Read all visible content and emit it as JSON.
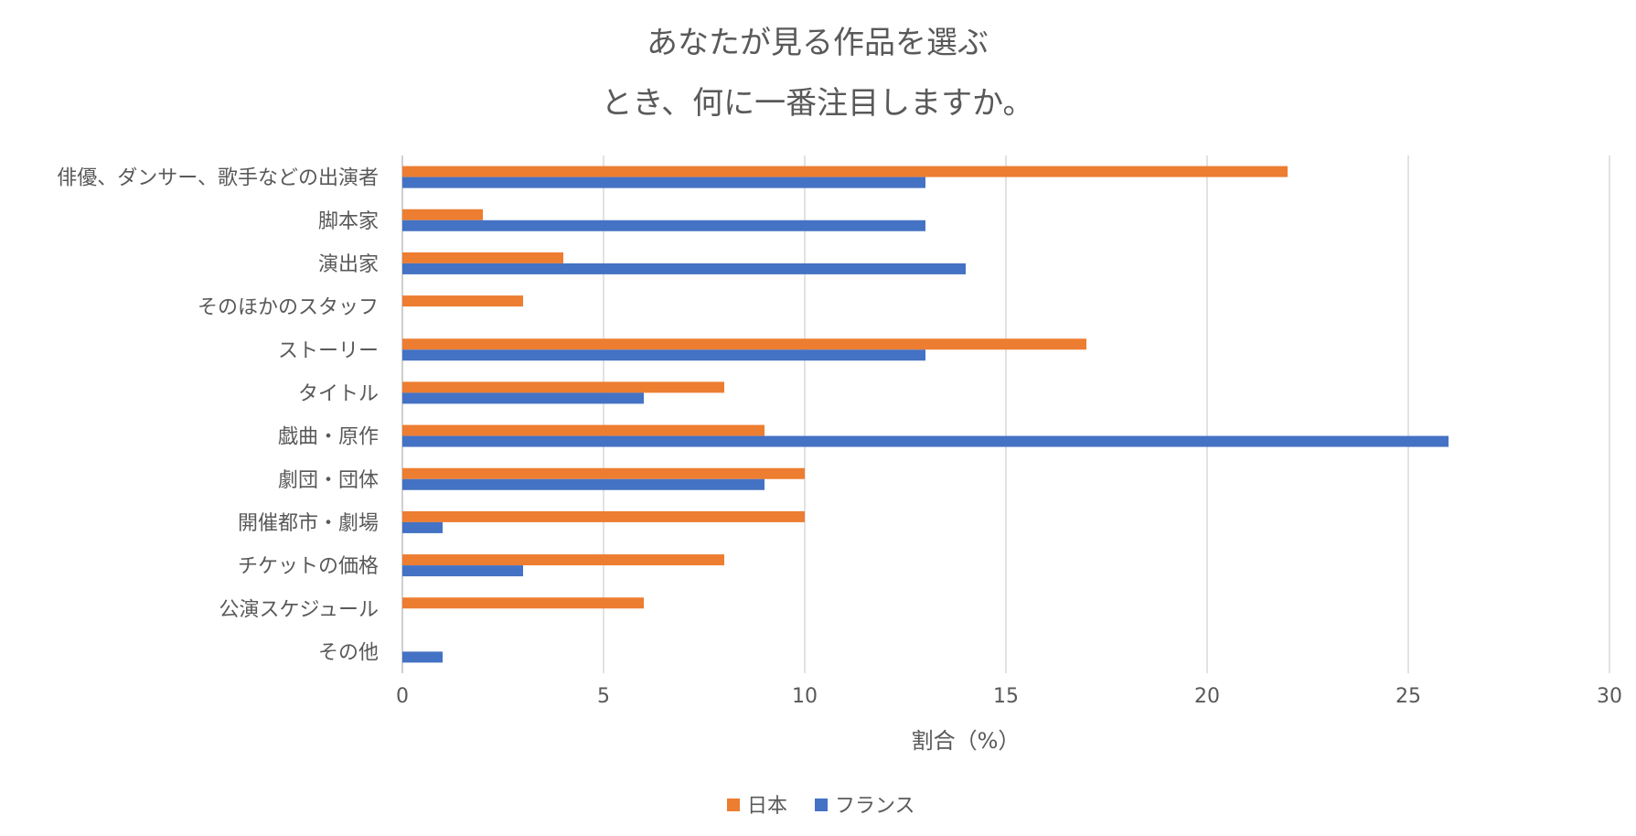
{
  "chart_data": {
    "type": "bar",
    "orientation": "horizontal",
    "title_lines": [
      "あなたが見る作品を選ぶ",
      "とき、何に一番注目しますか。"
    ],
    "categories": [
      "俳優、ダンサー、歌手などの出演者",
      "脚本家",
      "演出家",
      "そのほかのスタッフ",
      "ストーリー",
      "タイトル",
      "戯曲・原作",
      "劇団・団体",
      "開催都市・劇場",
      "チケットの価格",
      "公演スケジュール",
      "その他"
    ],
    "series": [
      {
        "name": "日本",
        "color": "#ed7d31",
        "values": [
          22,
          2,
          4,
          3,
          17,
          8,
          9,
          10,
          10,
          8,
          6,
          0
        ]
      },
      {
        "name": "フランス",
        "color": "#4472c4",
        "values": [
          13,
          13,
          14,
          0,
          13,
          6,
          26,
          9,
          1,
          3,
          0,
          1
        ]
      }
    ],
    "xlabel": "割合（%）",
    "ylabel": "",
    "xlim": [
      0,
      30
    ],
    "xticks": [
      0,
      5,
      10,
      15,
      20,
      25,
      30
    ],
    "grid": "vertical",
    "legend_position": "bottom"
  }
}
